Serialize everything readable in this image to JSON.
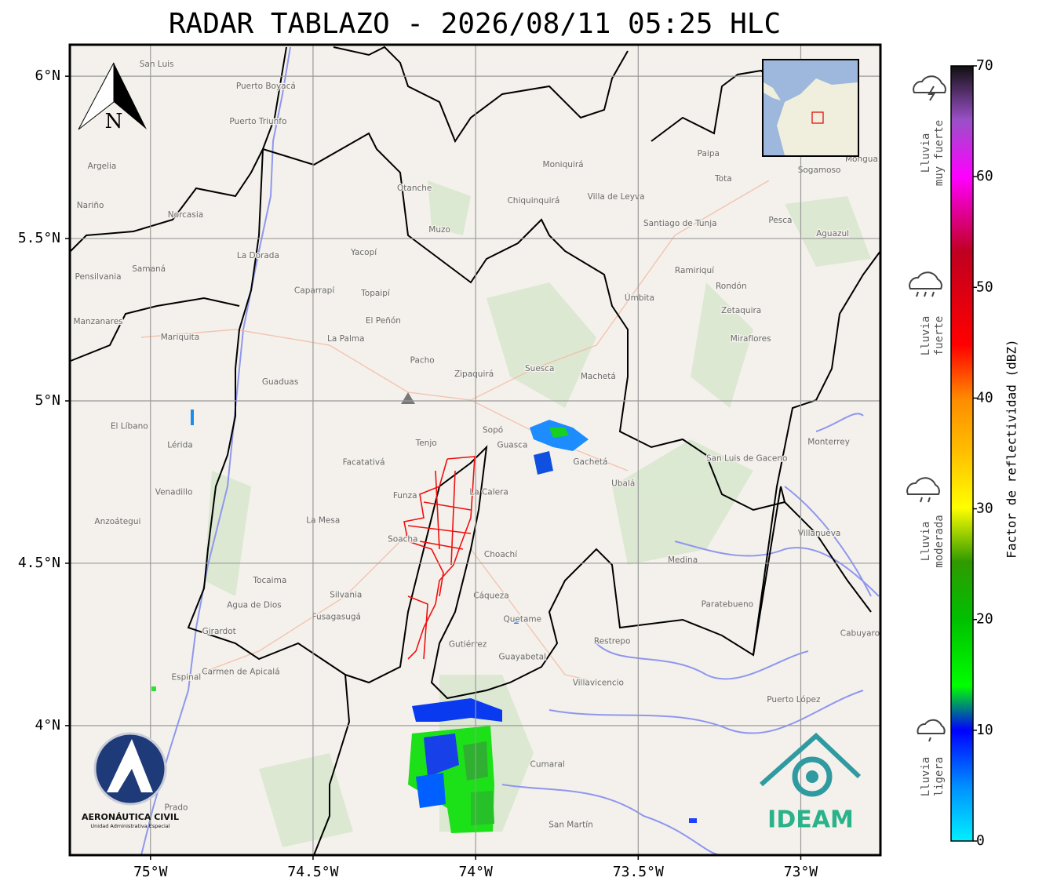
{
  "title": "RADAR TABLAZO - 2026/08/11 05:25 HLC",
  "map": {
    "xlim": [
      -75.248,
      -72.755
    ],
    "ylim": [
      3.601,
      6.097
    ],
    "xticks": [
      {
        "value": -75,
        "label": "75°W"
      },
      {
        "value": -74.5,
        "label": "74.5°W"
      },
      {
        "value": -74,
        "label": "74°W"
      },
      {
        "value": -73.5,
        "label": "73.5°W"
      },
      {
        "value": -73,
        "label": "73°W"
      }
    ],
    "yticks": [
      {
        "value": 4,
        "label": "4°N"
      },
      {
        "value": 4.5,
        "label": "4.5°N"
      },
      {
        "value": 5,
        "label": "5°N"
      },
      {
        "value": 5.5,
        "label": "5.5°N"
      },
      {
        "value": 6,
        "label": "6°N"
      }
    ],
    "grid": true,
    "north_label": "N",
    "places": [
      {
        "name": "San Luis",
        "lon": -74.981,
        "lat": 6.037
      },
      {
        "name": "Puerto Boyacá",
        "lon": -74.645,
        "lat": 5.969
      },
      {
        "name": "Puerto Triunfo",
        "lon": -74.669,
        "lat": 5.86
      },
      {
        "name": "Argelia",
        "lon": -75.149,
        "lat": 5.723
      },
      {
        "name": "Nariño",
        "lon": -75.185,
        "lat": 5.602
      },
      {
        "name": "Norcasia",
        "lon": -74.892,
        "lat": 5.573
      },
      {
        "name": "La Dorada",
        "lon": -74.669,
        "lat": 5.447
      },
      {
        "name": "Samaná",
        "lon": -75.005,
        "lat": 5.406
      },
      {
        "name": "Pensilvania",
        "lon": -75.161,
        "lat": 5.382
      },
      {
        "name": "Manzanares",
        "lon": -75.161,
        "lat": 5.244
      },
      {
        "name": "Mariquita",
        "lon": -74.909,
        "lat": 5.196
      },
      {
        "name": "Caparrapí",
        "lon": -74.496,
        "lat": 5.339
      },
      {
        "name": "Yacopí",
        "lon": -74.344,
        "lat": 5.457
      },
      {
        "name": "Topaipí",
        "lon": -74.308,
        "lat": 5.331
      },
      {
        "name": "El Peñón",
        "lon": -74.284,
        "lat": 5.247
      },
      {
        "name": "Muzo",
        "lon": -74.111,
        "lat": 5.527
      },
      {
        "name": "Otanche",
        "lon": -74.188,
        "lat": 5.655
      },
      {
        "name": "Chiquinquirá",
        "lon": -73.822,
        "lat": 5.616
      },
      {
        "name": "Moniquirá",
        "lon": -73.731,
        "lat": 5.727
      },
      {
        "name": "Villa de Leyva",
        "lon": -73.568,
        "lat": 5.628
      },
      {
        "name": "Santiago de Tunja",
        "lon": -73.371,
        "lat": 5.546
      },
      {
        "name": "Paipa",
        "lon": -73.284,
        "lat": 5.761
      },
      {
        "name": "Sogamoso",
        "lon": -72.943,
        "lat": 5.711
      },
      {
        "name": "Tota",
        "lon": -73.238,
        "lat": 5.684
      },
      {
        "name": "Mongua",
        "lon": -72.813,
        "lat": 5.744
      },
      {
        "name": "Pesca",
        "lon": -73.063,
        "lat": 5.556
      },
      {
        "name": "Aguazul",
        "lon": -72.902,
        "lat": 5.515
      },
      {
        "name": "Ramiriquí",
        "lon": -73.327,
        "lat": 5.401
      },
      {
        "name": "Rondón",
        "lon": -73.214,
        "lat": 5.353
      },
      {
        "name": "Zetaquira",
        "lon": -73.183,
        "lat": 5.278
      },
      {
        "name": "Úmbita",
        "lon": -73.496,
        "lat": 5.317
      },
      {
        "name": "Miraflores",
        "lon": -73.154,
        "lat": 5.191
      },
      {
        "name": "La Palma",
        "lon": -74.399,
        "lat": 5.191
      },
      {
        "name": "Pacho",
        "lon": -74.164,
        "lat": 5.124
      },
      {
        "name": "Guaduas",
        "lon": -74.601,
        "lat": 5.058
      },
      {
        "name": "Zipaquirá",
        "lon": -74.005,
        "lat": 5.082
      },
      {
        "name": "Suesca",
        "lon": -73.803,
        "lat": 5.099
      },
      {
        "name": "Machetá",
        "lon": -73.623,
        "lat": 5.075
      },
      {
        "name": "El Líbano",
        "lon": -75.065,
        "lat": 4.921
      },
      {
        "name": "Lérida",
        "lon": -74.909,
        "lat": 4.863
      },
      {
        "name": "Venadillo",
        "lon": -74.928,
        "lat": 4.718
      },
      {
        "name": "Anzoátegui",
        "lon": -75.101,
        "lat": 4.628
      },
      {
        "name": "Tenjo",
        "lon": -74.152,
        "lat": 4.87
      },
      {
        "name": "Sopó",
        "lon": -73.947,
        "lat": 4.909
      },
      {
        "name": "Guasca",
        "lon": -73.887,
        "lat": 4.863
      },
      {
        "name": "Gachetá",
        "lon": -73.647,
        "lat": 4.812
      },
      {
        "name": "Ubalá",
        "lon": -73.546,
        "lat": 4.745
      },
      {
        "name": "San Luis de Gaceno",
        "lon": -73.166,
        "lat": 4.822
      },
      {
        "name": "Monterrey",
        "lon": -72.914,
        "lat": 4.873
      },
      {
        "name": "Facatativá",
        "lon": -74.344,
        "lat": 4.81
      },
      {
        "name": "Funza",
        "lon": -74.217,
        "lat": 4.708
      },
      {
        "name": "La Calera",
        "lon": -73.959,
        "lat": 4.718
      },
      {
        "name": "La Mesa",
        "lon": -74.469,
        "lat": 4.631
      },
      {
        "name": "Soacha",
        "lon": -74.224,
        "lat": 4.573
      },
      {
        "name": "Choachí",
        "lon": -73.923,
        "lat": 4.527
      },
      {
        "name": "Medina",
        "lon": -73.363,
        "lat": 4.51
      },
      {
        "name": "Villanueva",
        "lon": -72.943,
        "lat": 4.592
      },
      {
        "name": "Tocaima",
        "lon": -74.633,
        "lat": 4.447
      },
      {
        "name": "Agua de Dios",
        "lon": -74.681,
        "lat": 4.37
      },
      {
        "name": "Silvania",
        "lon": -74.399,
        "lat": 4.402
      },
      {
        "name": "Cáqueza",
        "lon": -73.952,
        "lat": 4.399
      },
      {
        "name": "Fusagasugá",
        "lon": -74.428,
        "lat": 4.334
      },
      {
        "name": "Quetame",
        "lon": -73.856,
        "lat": 4.327
      },
      {
        "name": "Paratebueno",
        "lon": -73.226,
        "lat": 4.373
      },
      {
        "name": "Girardot",
        "lon": -74.789,
        "lat": 4.29
      },
      {
        "name": "Cabuyaro",
        "lon": -72.818,
        "lat": 4.283
      },
      {
        "name": "Gutiérrez",
        "lon": -74.024,
        "lat": 4.25
      },
      {
        "name": "Restrepo",
        "lon": -73.58,
        "lat": 4.259
      },
      {
        "name": "Guayabetal",
        "lon": -73.856,
        "lat": 4.211
      },
      {
        "name": "Carmen de Apicalá",
        "lon": -74.722,
        "lat": 4.165
      },
      {
        "name": "Espinal",
        "lon": -74.89,
        "lat": 4.148
      },
      {
        "name": "Villavicencio",
        "lon": -73.623,
        "lat": 4.131
      },
      {
        "name": "Puerto López",
        "lon": -73.022,
        "lat": 4.08
      },
      {
        "name": "Cumaral",
        "lon": -73.779,
        "lat": 3.88
      },
      {
        "name": "Prado",
        "lon": -74.921,
        "lat": 3.747
      },
      {
        "name": "San Martín",
        "lon": -73.707,
        "lat": 3.694
      }
    ]
  },
  "colorbar": {
    "label": "Factor de reflectividad (dBZ)",
    "lim": [
      0,
      70
    ],
    "ticks": [
      0,
      10,
      20,
      30,
      40,
      50,
      60,
      70
    ]
  },
  "rain_categories": [
    {
      "lines": [
        "Lluvia",
        "muy fuerte"
      ]
    },
    {
      "lines": [
        "Lluvia",
        "fuerte"
      ]
    },
    {
      "lines": [
        "Lluvia",
        "moderada"
      ]
    },
    {
      "lines": [
        "Lluvia",
        "ligera"
      ]
    }
  ],
  "logos": {
    "aerocivil": [
      "AERONÁUTICA CIVIL",
      "Unidad Administrativa Especial"
    ],
    "ideam": "IDEAM"
  }
}
